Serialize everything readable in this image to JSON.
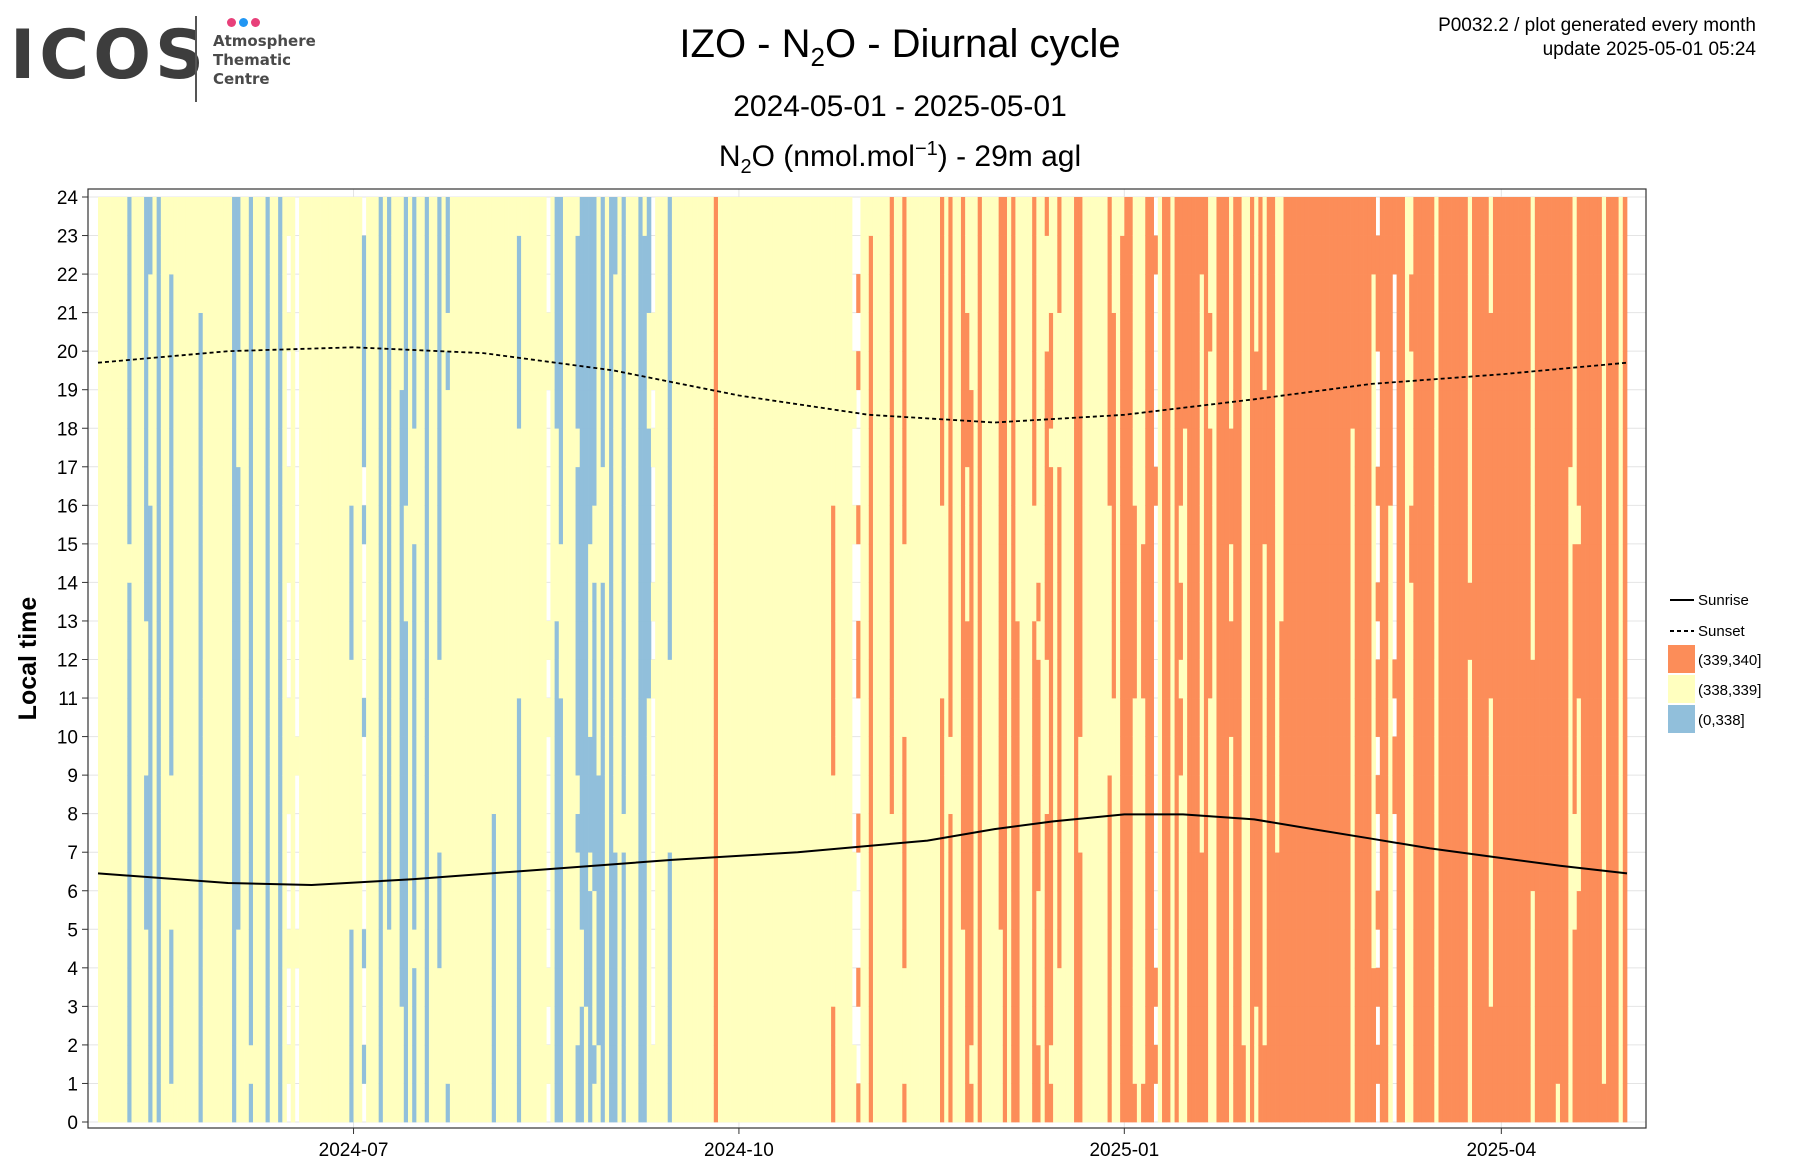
{
  "logo": {
    "text": "ICOS",
    "subtitle_lines": [
      "Atmosphere",
      "Thematic",
      "Centre"
    ],
    "dot_colors": [
      "#e8407a",
      "#2196f3",
      "#e8407a"
    ]
  },
  "header": {
    "line1": "P0032.2 / plot generated every month",
    "line2": "update  2025-05-01 05:24"
  },
  "title": {
    "pre": "IZO - N",
    "sub": "2",
    "post": "O - Diurnal cycle"
  },
  "subtitle": "2024-05-01 - 2025-05-01",
  "subtitle2": {
    "pre": "N",
    "sub": "2",
    "mid": "O (nmol.mol",
    "sup": "−1",
    "post": ") - 29m agl"
  },
  "chart_data": {
    "type": "heatmap",
    "title": "IZO - N2O - Diurnal cycle",
    "xlabel": "",
    "ylabel": "Local time",
    "x_range": [
      "2024-05-01",
      "2025-05-01"
    ],
    "x_tick_dates": [
      "2024-07-01",
      "2024-10-01",
      "2025-01-01",
      "2025-04-01"
    ],
    "x_tick_labels": [
      "2024-07",
      "2024-10",
      "2025-01",
      "2025-04"
    ],
    "y_range": [
      0,
      24
    ],
    "y_ticks": [
      0,
      1,
      2,
      3,
      4,
      5,
      6,
      7,
      8,
      9,
      10,
      11,
      12,
      13,
      14,
      15,
      16,
      17,
      18,
      19,
      20,
      21,
      22,
      23,
      24
    ],
    "grid": true,
    "legend_position": "right",
    "categories": [
      {
        "label": "(339,340]",
        "color": "#fc8d59"
      },
      {
        "label": "(338,339]",
        "color": "#ffffbf"
      },
      {
        "label": "(0,338]",
        "color": "#91bfdb"
      }
    ],
    "lines": [
      {
        "name": "Sunrise",
        "style": "solid",
        "points": [
          [
            "2024-05-01",
            6.45
          ],
          [
            "2024-06-01",
            6.2
          ],
          [
            "2024-06-21",
            6.15
          ],
          [
            "2024-07-15",
            6.3
          ],
          [
            "2024-08-15",
            6.55
          ],
          [
            "2024-09-15",
            6.8
          ],
          [
            "2024-10-15",
            7.0
          ],
          [
            "2024-11-15",
            7.3
          ],
          [
            "2024-12-01",
            7.6
          ],
          [
            "2024-12-15",
            7.8
          ],
          [
            "2025-01-01",
            7.98
          ],
          [
            "2025-01-15",
            7.98
          ],
          [
            "2025-02-01",
            7.85
          ],
          [
            "2025-02-15",
            7.6
          ],
          [
            "2025-03-01",
            7.35
          ],
          [
            "2025-03-15",
            7.1
          ],
          [
            "2025-04-01",
            6.85
          ],
          [
            "2025-04-15",
            6.65
          ],
          [
            "2025-05-01",
            6.45
          ]
        ]
      },
      {
        "name": "Sunset",
        "style": "dashed",
        "points": [
          [
            "2024-05-01",
            19.7
          ],
          [
            "2024-06-01",
            20.0
          ],
          [
            "2024-07-01",
            20.1
          ],
          [
            "2024-08-01",
            19.95
          ],
          [
            "2024-09-01",
            19.5
          ],
          [
            "2024-10-01",
            18.85
          ],
          [
            "2024-11-01",
            18.35
          ],
          [
            "2024-12-01",
            18.15
          ],
          [
            "2025-01-01",
            18.35
          ],
          [
            "2025-02-01",
            18.75
          ],
          [
            "2025-03-01",
            19.15
          ],
          [
            "2025-04-01",
            19.4
          ],
          [
            "2025-05-01",
            19.7
          ]
        ]
      }
    ],
    "value_pattern": {
      "periods": [
        {
          "from": "2024-05-01",
          "to": "2024-08-15",
          "dominant": "(338,339]",
          "secondary": "(0,338]",
          "secondary_share": 0.25
        },
        {
          "from": "2024-08-15",
          "to": "2024-09-15",
          "dominant": "(338,339]",
          "secondary": "(0,338]",
          "secondary_share": 0.35
        },
        {
          "from": "2024-09-15",
          "to": "2024-11-15",
          "dominant": "(338,339]",
          "secondary": "(339,340]",
          "secondary_share": 0.05
        },
        {
          "from": "2024-11-15",
          "to": "2025-01-01",
          "dominant": "(338,339]",
          "secondary": "(339,340]",
          "secondary_share": 0.45
        },
        {
          "from": "2025-01-01",
          "to": "2025-02-15",
          "dominant": "(339,340]",
          "secondary": "(338,339]",
          "secondary_share": 0.35
        },
        {
          "from": "2025-02-15",
          "to": "2025-05-01",
          "dominant": "(339,340]",
          "secondary": "(338,339]",
          "secondary_share": 0.15
        }
      ]
    }
  },
  "legend": {
    "lines": [
      {
        "label": "Sunrise",
        "style": "solid"
      },
      {
        "label": "Sunset",
        "style": "dashed"
      }
    ],
    "fills": [
      {
        "label": "(339,340]",
        "color": "#fc8d59"
      },
      {
        "label": "(338,339]",
        "color": "#ffffbf"
      },
      {
        "label": "(0,338]",
        "color": "#91bfdb"
      }
    ]
  }
}
